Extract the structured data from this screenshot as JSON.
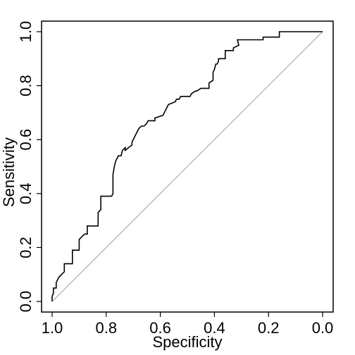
{
  "chart_data": {
    "type": "line",
    "xlabel": "Specificity",
    "ylabel": "Sensitivity",
    "x_reversed": true,
    "xlim": [
      1.0,
      0.0
    ],
    "ylim": [
      0.0,
      1.0
    ],
    "x_ticks": [
      "1.0",
      "0.8",
      "0.6",
      "0.4",
      "0.2",
      "0.0"
    ],
    "y_ticks": [
      "0.0",
      "0.2",
      "0.4",
      "0.6",
      "0.8",
      "1.0"
    ],
    "grid": false,
    "legend": "none",
    "colors": {
      "curve": "#000000",
      "diagonal": "#a0a0a0",
      "frame": "#000000"
    },
    "series": [
      {
        "x": [
          1.0,
          1.0,
          0.995,
          0.995,
          0.985,
          0.985,
          0.975,
          0.965,
          0.955,
          0.955,
          0.925,
          0.925,
          0.9,
          0.9,
          0.89,
          0.88,
          0.87,
          0.87,
          0.83,
          0.83,
          0.82,
          0.82,
          0.78,
          0.775,
          0.775,
          0.77,
          0.765,
          0.755,
          0.745,
          0.74,
          0.74,
          0.73,
          0.73,
          0.705,
          0.705,
          0.69,
          0.68,
          0.67,
          0.665,
          0.66,
          0.65,
          0.645,
          0.62,
          0.62,
          0.59,
          0.57,
          0.545,
          0.54,
          0.53,
          0.525,
          0.525,
          0.49,
          0.485,
          0.47,
          0.465,
          0.45,
          0.42,
          0.42,
          0.405,
          0.405,
          0.4,
          0.395,
          0.39,
          0.385,
          0.385,
          0.375,
          0.375,
          0.36,
          0.36,
          0.33,
          0.33,
          0.31,
          0.315,
          0.3,
          0.22,
          0.22,
          0.16,
          0.16,
          0.0
        ],
        "y": [
          0.0,
          0.02,
          0.03,
          0.05,
          0.05,
          0.07,
          0.09,
          0.1,
          0.11,
          0.14,
          0.14,
          0.19,
          0.19,
          0.23,
          0.24,
          0.25,
          0.25,
          0.28,
          0.28,
          0.33,
          0.34,
          0.39,
          0.39,
          0.4,
          0.47,
          0.5,
          0.52,
          0.54,
          0.54,
          0.56,
          0.56,
          0.57,
          0.56,
          0.58,
          0.59,
          0.62,
          0.64,
          0.65,
          0.65,
          0.65,
          0.66,
          0.67,
          0.67,
          0.68,
          0.69,
          0.73,
          0.74,
          0.75,
          0.75,
          0.76,
          0.76,
          0.76,
          0.77,
          0.78,
          0.78,
          0.79,
          0.79,
          0.81,
          0.82,
          0.85,
          0.86,
          0.88,
          0.88,
          0.89,
          0.9,
          0.9,
          0.9,
          0.9,
          0.93,
          0.93,
          0.94,
          0.95,
          0.97,
          0.97,
          0.97,
          0.98,
          0.98,
          1.0,
          1.0
        ]
      }
    ]
  }
}
